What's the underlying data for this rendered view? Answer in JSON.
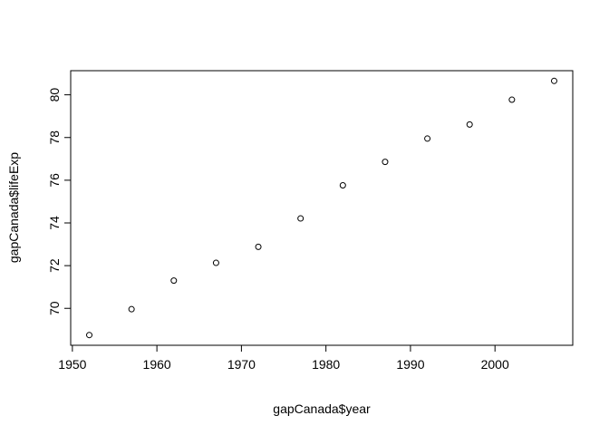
{
  "chart_data": {
    "type": "scatter",
    "title": "",
    "xlabel": "gapCanada$year",
    "ylabel": "gapCanada$lifeExp",
    "x": [
      1952,
      1957,
      1962,
      1967,
      1972,
      1977,
      1982,
      1987,
      1992,
      1997,
      2002,
      2007
    ],
    "y": [
      68.75,
      69.96,
      71.3,
      72.13,
      72.88,
      74.21,
      75.76,
      76.86,
      77.95,
      78.61,
      79.77,
      80.65
    ],
    "xlim": [
      1949.8,
      2009.2
    ],
    "ylim": [
      68.27,
      81.13
    ],
    "xticks": [
      1950,
      1960,
      1970,
      1980,
      1990,
      2000
    ],
    "yticks": [
      70,
      72,
      74,
      76,
      78,
      80
    ],
    "grid": false,
    "legend": "none",
    "point_style": "open-circle",
    "colors": {
      "point": "#000000",
      "axis": "#000000",
      "background": "#ffffff"
    }
  }
}
